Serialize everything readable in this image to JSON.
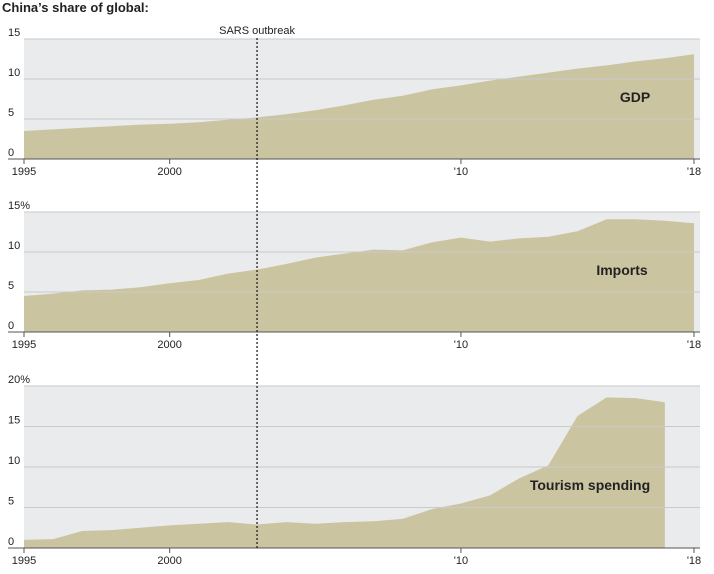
{
  "title": "China’s share of global:",
  "annotation": {
    "x": 2003,
    "label": "SARS outbreak"
  },
  "chart_data": [
    {
      "type": "area",
      "title": "GDP",
      "color": "#cbc4a1",
      "x": [
        1995,
        1996,
        1997,
        1998,
        1999,
        2000,
        2001,
        2002,
        2003,
        2004,
        2005,
        2006,
        2007,
        2008,
        2009,
        2010,
        2011,
        2012,
        2013,
        2014,
        2015,
        2016,
        2017,
        2018
      ],
      "values": [
        3.5,
        3.7,
        3.9,
        4.1,
        4.3,
        4.4,
        4.6,
        4.9,
        5.2,
        5.6,
        6.1,
        6.7,
        7.4,
        7.9,
        8.7,
        9.2,
        9.8,
        10.3,
        10.8,
        11.3,
        11.7,
        12.2,
        12.6,
        13.1
      ],
      "xlim": [
        1995,
        2018
      ],
      "xticks": [
        1995,
        2000,
        {
          "value": 2010,
          "label": "'10"
        },
        {
          "value": 2018,
          "label": "'18"
        }
      ],
      "ylim": [
        0,
        15
      ],
      "yticks": [
        0,
        5,
        10,
        15
      ],
      "grid": true
    },
    {
      "type": "area",
      "title": "Imports",
      "color": "#cbc4a1",
      "x": [
        1995,
        1996,
        1997,
        1998,
        1999,
        2000,
        2001,
        2002,
        2003,
        2004,
        2005,
        2006,
        2007,
        2008,
        2009,
        2010,
        2011,
        2012,
        2013,
        2014,
        2015,
        2016,
        2017,
        2018
      ],
      "values": [
        4.5,
        4.8,
        5.2,
        5.3,
        5.6,
        6.1,
        6.5,
        7.3,
        7.8,
        8.5,
        9.3,
        9.8,
        10.3,
        10.2,
        11.2,
        11.8,
        11.3,
        11.7,
        11.9,
        12.6,
        14.1,
        14.1,
        13.9,
        13.6
      ],
      "xlim": [
        1995,
        2018
      ],
      "xticks": [
        1995,
        2000,
        {
          "value": 2010,
          "label": "'10"
        },
        {
          "value": 2018,
          "label": "'18"
        }
      ],
      "ylim": [
        0,
        15
      ],
      "yticks": [
        0,
        5,
        10,
        {
          "value": 15,
          "label": "15%"
        }
      ],
      "grid": true
    },
    {
      "type": "area",
      "title": "Tourism spending",
      "color": "#cbc4a1",
      "x": [
        1995,
        1996,
        1997,
        1998,
        1999,
        2000,
        2001,
        2002,
        2003,
        2004,
        2005,
        2006,
        2007,
        2008,
        2009,
        2010,
        2011,
        2012,
        2013,
        2014,
        2015,
        2016,
        2017,
        2018
      ],
      "values": [
        1.0,
        1.1,
        2.1,
        2.2,
        2.5,
        2.8,
        3.0,
        3.2,
        2.9,
        3.2,
        3.0,
        3.2,
        3.3,
        3.6,
        4.8,
        5.5,
        6.5,
        8.6,
        10.2,
        16.3,
        18.6,
        18.5,
        18.0,
        null
      ],
      "xlim": [
        1995,
        2018
      ],
      "xticks": [
        1995,
        2000,
        {
          "value": 2010,
          "label": "'10"
        },
        {
          "value": 2018,
          "label": "'18"
        }
      ],
      "ylim": [
        0,
        20
      ],
      "yticks": [
        0,
        5,
        10,
        15,
        {
          "value": 20,
          "label": "20%"
        }
      ],
      "grid": true
    }
  ]
}
